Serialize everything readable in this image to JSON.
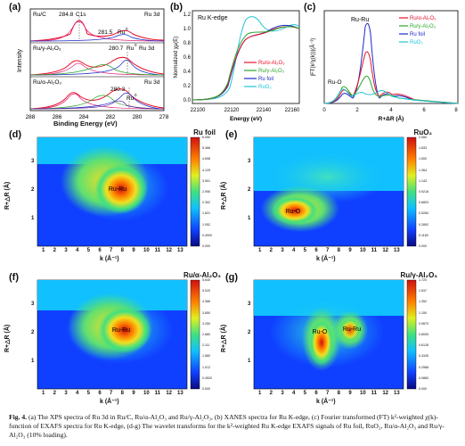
{
  "panels": {
    "a": "(a)",
    "b": "(b)",
    "c": "(c)",
    "d": "(d)",
    "e": "(e)",
    "f": "(f)",
    "g": "(g)"
  },
  "xps": {
    "ylabel": "Intensity",
    "xlabel": "Binding Energy (eV)",
    "ticks": [
      "288",
      "286",
      "284",
      "282",
      "280",
      "278"
    ],
    "rows": [
      {
        "sample": "Ru/C",
        "tag": "Ru 3d",
        "peak1": "284.8",
        "c1s": "C1s",
        "peak2": "281.5",
        "peak2_label": "Ru",
        "peak2_sup": "0"
      },
      {
        "sample": "Ru/γ-Al₂O₃",
        "tag": "",
        "peak1": "",
        "c1s": "",
        "peak2": "280.7",
        "peak2_label": "Ru",
        "peak2_sup": "0",
        "tag2": "Ru 3d"
      },
      {
        "sample": "Ru/α-Al₂O₃",
        "tag": "Ru 3d",
        "peak1": "",
        "c1s": "",
        "peak2": "280.3",
        "peak2_label": "Ru",
        "peak2_sup": "0"
      }
    ]
  },
  "xanes": {
    "title": "Ru K-edge",
    "ylabel": "Normalized χμ(E)",
    "xlabel": "Energy (eV)",
    "xticks": [
      "22100",
      "22120",
      "22140",
      "22160"
    ],
    "yticks": [
      "0.0",
      "0.2",
      "0.4",
      "0.6",
      "0.8",
      "1.0",
      "1.2"
    ],
    "legend": [
      "Ru/α-Al₂O₃",
      "Ru/γ-Al₂O₃",
      "Ru foil",
      "RuO₂"
    ]
  },
  "exafs": {
    "ylabel": "|FT(k²χ(k))|(Å⁻³)",
    "xlabel": "R+ΔR (Å)",
    "xticks": [
      "0",
      "2",
      "4",
      "6",
      "8"
    ],
    "annot1": "Ru-Ru",
    "annot2": "Ru-O",
    "legend": [
      "Ru/α-Al₂O₃",
      "Ru/γ-Al₂O₃",
      "Ru foil",
      "RuO₂"
    ]
  },
  "wt": {
    "ylabel": "R+△R (Å)",
    "xlabel": "k (Å⁻¹)",
    "kticks": [
      "1",
      "2",
      "3",
      "4",
      "5",
      "6",
      "7",
      "8",
      "9",
      "10",
      "11",
      "12",
      "13"
    ],
    "rticks": [
      "1",
      "2",
      "3"
    ]
  },
  "wt_panels": [
    {
      "id": "d",
      "title": "Ru foil",
      "annot": "Ru-Ru",
      "cbar": [
        "6.050",
        "5.366",
        "4.698",
        "4.125",
        "3.501",
        "2.906",
        "2.302",
        "1.621",
        "1.052",
        "0.4900",
        "0.000"
      ]
    },
    {
      "id": "e",
      "title": "RuO₂",
      "annot": "Ru-O",
      "cbar": [
        "2.080",
        "1.833",
        "1.500",
        "1.364",
        "1.143",
        "0.9218",
        "0.6803",
        "0.5284",
        "0.2892",
        "0.1160",
        "0.000"
      ]
    },
    {
      "id": "f",
      "title": "Ru/α-Al₂O₃",
      "annot": "Ru-Ru",
      "cbar": [
        "5.640",
        "5.020",
        "4.386",
        "3.850",
        "3.250",
        "2.680",
        "2.111",
        "1.580",
        "1.012",
        "0.4520",
        "0.000"
      ]
    },
    {
      "id": "g",
      "title": "Ru/γ-Al₂O₃",
      "annot": "Ru-O",
      "annot2": "Ru-Ru",
      "cbar": [
        "1.720",
        "1.537",
        "1.352",
        "1.150",
        "0.9870",
        "0.8005",
        "0.6128",
        "0.4345",
        "0.2568",
        "0.0860",
        "0.000"
      ]
    }
  ],
  "caption": {
    "fig": "Fig. 4.",
    "text": "(a) The XPS spectra of Ru 3d in Ru/C, Ru/α-Al₂O₃ and Ru/γ-Al₂O₃, (b) XANES spectra for Ru K-edge, (c) Fourier transformed (FT) k²-weighted χ(k)-function of EXAFS spectra for Ru K-edge, (d-g) The wavelet transforms for the k²-weighted Ru K-edge EXAFS signals of Ru foil, RuO₂, Ru/α-Al₂O₃ and Ru/γ-Al₂O₃ (10% loading)."
  },
  "colors": {
    "red": "#e8102a",
    "green": "#2aa52a",
    "blue": "#1a2ac8",
    "cyan": "#22c4d8",
    "pink": "#e0207a",
    "purple": "#6020a0"
  }
}
